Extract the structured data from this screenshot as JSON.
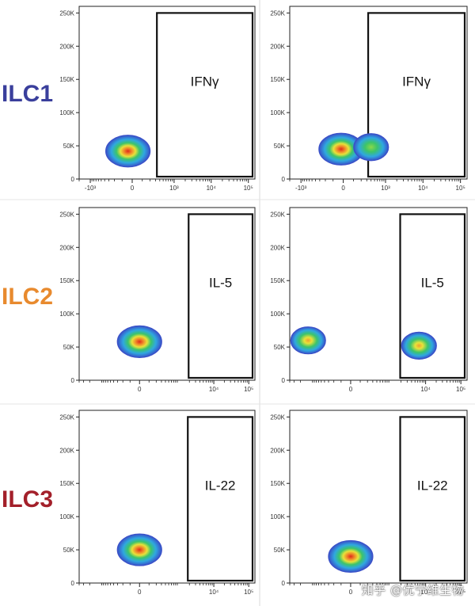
{
  "chart_data": {
    "type": "scatter",
    "subtype": "flow-cytometry-density-plot",
    "colors": {
      "ILC1": "#3a3f9c",
      "ILC2": "#e88a2e",
      "ILC3": "#a3202a",
      "density": [
        "#3a50c8",
        "#2fa8e0",
        "#3cc46a",
        "#e8e23a",
        "#f08a2a",
        "#e02a1a"
      ]
    },
    "y_ticks": [
      "0",
      "50K",
      "100K",
      "150K",
      "200K",
      "250K"
    ],
    "rows": [
      {
        "label": "ILC1",
        "x_ticks": [
          "-10³",
          "0",
          "10³",
          "10⁴",
          "10⁵"
        ],
        "panels": [
          {
            "gate": {
              "label": "IFNγ",
              "x_min": 330,
              "y_range": [
                0,
                250000
              ]
            },
            "populations": [
              {
                "x": -40,
                "y": 42000,
                "peak": "red"
              }
            ]
          },
          {
            "gate": {
              "label": "IFNγ",
              "x_min": 330,
              "y_range": [
                0,
                250000
              ]
            },
            "populations": [
              {
                "x": -20,
                "y": 45000,
                "peak": "red"
              },
              {
                "x": 400,
                "y": 48000,
                "peak": "green"
              }
            ]
          }
        ]
      },
      {
        "label": "ILC2",
        "x_ticks": [
          "0",
          "10⁴",
          "10⁵"
        ],
        "panels": [
          {
            "gate": {
              "label": "IL-5",
              "x_min": 1900,
              "y_range": [
                0,
                250000
              ]
            },
            "populations": [
              {
                "x": 0,
                "y": 58000,
                "peak": "red"
              }
            ]
          },
          {
            "gate": {
              "label": "IL-5",
              "x_min": 1900,
              "y_range": [
                0,
                250000
              ]
            },
            "populations": [
              {
                "x": -1200,
                "y": 60000,
                "peak": "yellow"
              },
              {
                "x": 6500,
                "y": 52000,
                "peak": "yellow"
              }
            ]
          }
        ]
      },
      {
        "label": "ILC3",
        "x_ticks": [
          "0",
          "10⁴",
          "10⁵"
        ],
        "panels": [
          {
            "gate": {
              "label": "IL-22",
              "x_min": 1800,
              "y_range": [
                0,
                250000
              ]
            },
            "populations": [
              {
                "x": 0,
                "y": 50000,
                "peak": "red"
              }
            ]
          },
          {
            "gate": {
              "label": "IL-22",
              "x_min": 1900,
              "y_range": [
                0,
                250000
              ]
            },
            "populations": [
              {
                "x": 0,
                "y": 40000,
                "peak": "red"
              }
            ]
          }
        ]
      }
    ]
  },
  "watermark": "知乎 @优宁维生物"
}
